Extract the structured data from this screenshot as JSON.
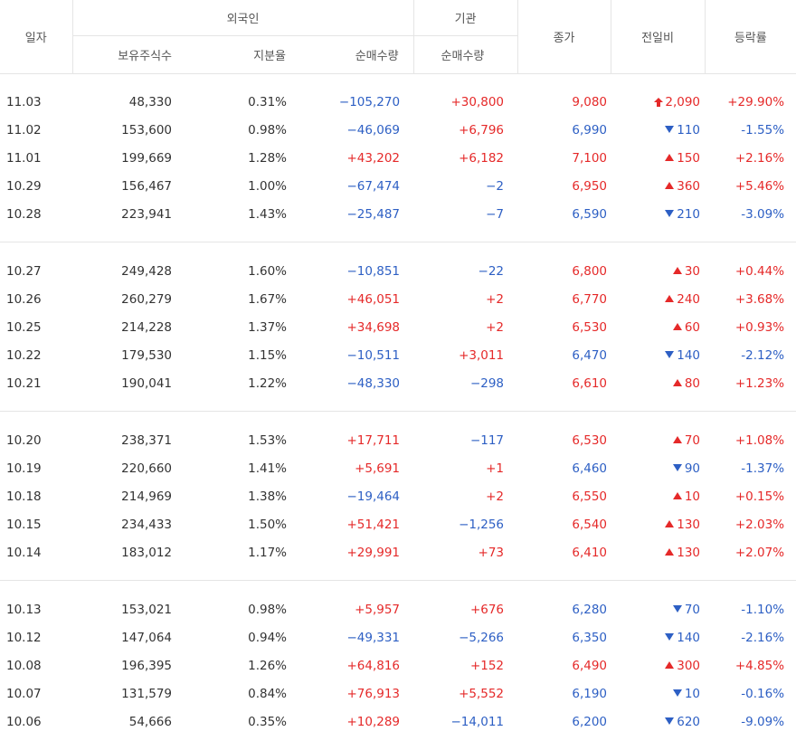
{
  "header": {
    "date": "일자",
    "foreign": "외국인",
    "institution": "기관",
    "holdings": "보유주식수",
    "share_ratio": "지분율",
    "net_foreign": "순매수량",
    "net_inst": "순매수량",
    "close": "종가",
    "change": "전일비",
    "rate": "등락률"
  },
  "groups": [
    [
      {
        "date": "11.03",
        "hold": "48,330",
        "ratio": "0.31%",
        "fnet": "−105,270",
        "fdir": "dn",
        "inet": "+30,800",
        "idir": "up",
        "close": "9,080",
        "cdir": "up",
        "chg": "2,090",
        "chgdir": "up",
        "upper": true,
        "rate": "+29.90%"
      },
      {
        "date": "11.02",
        "hold": "153,600",
        "ratio": "0.98%",
        "fnet": "−46,069",
        "fdir": "dn",
        "inet": "+6,796",
        "idir": "up",
        "close": "6,990",
        "cdir": "dn",
        "chg": "110",
        "chgdir": "dn",
        "rate": "-1.55%"
      },
      {
        "date": "11.01",
        "hold": "199,669",
        "ratio": "1.28%",
        "fnet": "+43,202",
        "fdir": "up",
        "inet": "+6,182",
        "idir": "up",
        "close": "7,100",
        "cdir": "up",
        "chg": "150",
        "chgdir": "up",
        "rate": "+2.16%"
      },
      {
        "date": "10.29",
        "hold": "156,467",
        "ratio": "1.00%",
        "fnet": "−67,474",
        "fdir": "dn",
        "inet": "−2",
        "idir": "dn",
        "close": "6,950",
        "cdir": "up",
        "chg": "360",
        "chgdir": "up",
        "rate": "+5.46%"
      },
      {
        "date": "10.28",
        "hold": "223,941",
        "ratio": "1.43%",
        "fnet": "−25,487",
        "fdir": "dn",
        "inet": "−7",
        "idir": "dn",
        "close": "6,590",
        "cdir": "dn",
        "chg": "210",
        "chgdir": "dn",
        "rate": "-3.09%"
      }
    ],
    [
      {
        "date": "10.27",
        "hold": "249,428",
        "ratio": "1.60%",
        "fnet": "−10,851",
        "fdir": "dn",
        "inet": "−22",
        "idir": "dn",
        "close": "6,800",
        "cdir": "up",
        "chg": "30",
        "chgdir": "up",
        "rate": "+0.44%"
      },
      {
        "date": "10.26",
        "hold": "260,279",
        "ratio": "1.67%",
        "fnet": "+46,051",
        "fdir": "up",
        "inet": "+2",
        "idir": "up",
        "close": "6,770",
        "cdir": "up",
        "chg": "240",
        "chgdir": "up",
        "rate": "+3.68%"
      },
      {
        "date": "10.25",
        "hold": "214,228",
        "ratio": "1.37%",
        "fnet": "+34,698",
        "fdir": "up",
        "inet": "+2",
        "idir": "up",
        "close": "6,530",
        "cdir": "up",
        "chg": "60",
        "chgdir": "up",
        "rate": "+0.93%"
      },
      {
        "date": "10.22",
        "hold": "179,530",
        "ratio": "1.15%",
        "fnet": "−10,511",
        "fdir": "dn",
        "inet": "+3,011",
        "idir": "up",
        "close": "6,470",
        "cdir": "dn",
        "chg": "140",
        "chgdir": "dn",
        "rate": "-2.12%"
      },
      {
        "date": "10.21",
        "hold": "190,041",
        "ratio": "1.22%",
        "fnet": "−48,330",
        "fdir": "dn",
        "inet": "−298",
        "idir": "dn",
        "close": "6,610",
        "cdir": "up",
        "chg": "80",
        "chgdir": "up",
        "rate": "+1.23%"
      }
    ],
    [
      {
        "date": "10.20",
        "hold": "238,371",
        "ratio": "1.53%",
        "fnet": "+17,711",
        "fdir": "up",
        "inet": "−117",
        "idir": "dn",
        "close": "6,530",
        "cdir": "up",
        "chg": "70",
        "chgdir": "up",
        "rate": "+1.08%"
      },
      {
        "date": "10.19",
        "hold": "220,660",
        "ratio": "1.41%",
        "fnet": "+5,691",
        "fdir": "up",
        "inet": "+1",
        "idir": "up",
        "close": "6,460",
        "cdir": "dn",
        "chg": "90",
        "chgdir": "dn",
        "rate": "-1.37%"
      },
      {
        "date": "10.18",
        "hold": "214,969",
        "ratio": "1.38%",
        "fnet": "−19,464",
        "fdir": "dn",
        "inet": "+2",
        "idir": "up",
        "close": "6,550",
        "cdir": "up",
        "chg": "10",
        "chgdir": "up",
        "rate": "+0.15%"
      },
      {
        "date": "10.15",
        "hold": "234,433",
        "ratio": "1.50%",
        "fnet": "+51,421",
        "fdir": "up",
        "inet": "−1,256",
        "idir": "dn",
        "close": "6,540",
        "cdir": "up",
        "chg": "130",
        "chgdir": "up",
        "rate": "+2.03%"
      },
      {
        "date": "10.14",
        "hold": "183,012",
        "ratio": "1.17%",
        "fnet": "+29,991",
        "fdir": "up",
        "inet": "+73",
        "idir": "up",
        "close": "6,410",
        "cdir": "up",
        "chg": "130",
        "chgdir": "up",
        "rate": "+2.07%"
      }
    ],
    [
      {
        "date": "10.13",
        "hold": "153,021",
        "ratio": "0.98%",
        "fnet": "+5,957",
        "fdir": "up",
        "inet": "+676",
        "idir": "up",
        "close": "6,280",
        "cdir": "dn",
        "chg": "70",
        "chgdir": "dn",
        "rate": "-1.10%"
      },
      {
        "date": "10.12",
        "hold": "147,064",
        "ratio": "0.94%",
        "fnet": "−49,331",
        "fdir": "dn",
        "inet": "−5,266",
        "idir": "dn",
        "close": "6,350",
        "cdir": "dn",
        "chg": "140",
        "chgdir": "dn",
        "rate": "-2.16%"
      },
      {
        "date": "10.08",
        "hold": "196,395",
        "ratio": "1.26%",
        "fnet": "+64,816",
        "fdir": "up",
        "inet": "+152",
        "idir": "up",
        "close": "6,490",
        "cdir": "up",
        "chg": "300",
        "chgdir": "up",
        "rate": "+4.85%"
      },
      {
        "date": "10.07",
        "hold": "131,579",
        "ratio": "0.84%",
        "fnet": "+76,913",
        "fdir": "up",
        "inet": "+5,552",
        "idir": "up",
        "close": "6,190",
        "cdir": "dn",
        "chg": "10",
        "chgdir": "dn",
        "rate": "-0.16%"
      },
      {
        "date": "10.06",
        "hold": "54,666",
        "ratio": "0.35%",
        "fnet": "+10,289",
        "fdir": "up",
        "inet": "−14,011",
        "idir": "dn",
        "close": "6,200",
        "cdir": "dn",
        "chg": "620",
        "chgdir": "dn",
        "rate": "-9.09%"
      }
    ]
  ],
  "colors": {
    "up": "#e52929",
    "down": "#2d5fc4"
  }
}
